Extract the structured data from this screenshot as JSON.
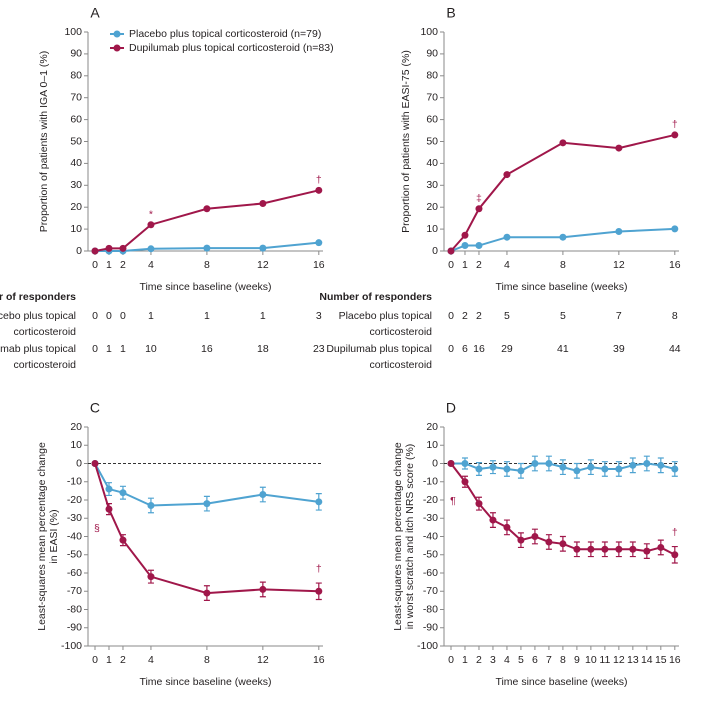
{
  "chart_data": [
    {
      "type": "line",
      "panel": "A",
      "ylabel": [
        "Proportion of patients with IGA 0–1 (%)"
      ],
      "xlabel": "Time since baseline (weeks)",
      "x": [
        0,
        1,
        2,
        4,
        8,
        12,
        16
      ],
      "xlim": [
        -0.5,
        16.3
      ],
      "xticks": [
        0,
        1,
        2,
        4,
        8,
        12,
        16
      ],
      "ylim": [
        0,
        100
      ],
      "yticks": [
        0,
        10,
        20,
        30,
        40,
        50,
        60,
        70,
        80,
        90,
        100
      ],
      "legend": "upper left",
      "series": [
        {
          "name": "Placebo plus topical corticosteroid (n=79)",
          "color": "#4fa3d1",
          "values": [
            0,
            0,
            0,
            1,
            1.3,
            1.3,
            3.8
          ]
        },
        {
          "name": "Dupilumab plus topical corticosteroid (n=83)",
          "color": "#a0174a",
          "values": [
            0,
            1.2,
            1.2,
            12,
            19.3,
            21.7,
            27.7
          ]
        }
      ],
      "annotations": [
        {
          "text": "*",
          "x": 4
        },
        {
          "text": "†",
          "x": 16
        }
      ],
      "responders": {
        "title": "Number of responders",
        "rows": [
          {
            "label_lines": [
              "Placebo plus topical",
              "corticosteroid"
            ],
            "values": [
              0,
              0,
              0,
              1,
              1,
              1,
              3
            ]
          },
          {
            "label_lines": [
              "Dupilumab plus topical",
              "corticosteroid"
            ],
            "values": [
              0,
              1,
              1,
              10,
              16,
              18,
              23
            ]
          }
        ]
      }
    },
    {
      "type": "line",
      "panel": "B",
      "ylabel": [
        "Proportion of patients with EASI-75 (%)"
      ],
      "xlabel": "Time since baseline (weeks)",
      "x": [
        0,
        1,
        2,
        4,
        8,
        12,
        16
      ],
      "xlim": [
        -0.5,
        16.3
      ],
      "xticks": [
        0,
        1,
        2,
        4,
        8,
        12,
        16
      ],
      "ylim": [
        0,
        100
      ],
      "yticks": [
        0,
        10,
        20,
        30,
        40,
        50,
        60,
        70,
        80,
        90,
        100
      ],
      "series": [
        {
          "color": "#4fa3d1",
          "values": [
            0,
            2.5,
            2.5,
            6.3,
            6.3,
            8.9,
            10.1
          ]
        },
        {
          "color": "#a0174a",
          "values": [
            0,
            7.2,
            19.3,
            34.9,
            49.4,
            47,
            53
          ]
        }
      ],
      "annotations": [
        {
          "text": "‡",
          "x": 2
        },
        {
          "text": "†",
          "x": 16
        }
      ],
      "responders": {
        "title": "Number of responders",
        "rows": [
          {
            "label_lines": [
              "Placebo plus topical",
              "corticosteroid"
            ],
            "values": [
              0,
              2,
              2,
              5,
              5,
              7,
              8
            ]
          },
          {
            "label_lines": [
              "Dupilumab plus topical",
              "corticosteroid"
            ],
            "values": [
              0,
              6,
              16,
              29,
              41,
              39,
              44
            ]
          }
        ]
      }
    },
    {
      "type": "line",
      "panel": "C",
      "ylabel": [
        "Least-squares mean percentage change",
        "in EASI (%)"
      ],
      "xlabel": "Time since baseline (weeks)",
      "x": [
        0,
        1,
        2,
        4,
        8,
        12,
        16
      ],
      "xlim": [
        -0.5,
        16.3
      ],
      "xticks": [
        0,
        1,
        2,
        4,
        8,
        12,
        16
      ],
      "ylim": [
        -100,
        20
      ],
      "yticks": [
        20,
        10,
        0,
        -10,
        -20,
        -30,
        -40,
        -50,
        -60,
        -70,
        -80,
        -90,
        -100
      ],
      "hline": 0,
      "series": [
        {
          "color": "#4fa3d1",
          "values": [
            0,
            -14,
            -16,
            -23,
            -22,
            -17,
            -21
          ],
          "errors": [
            0,
            3.5,
            3.5,
            4,
            4,
            4,
            4.5
          ]
        },
        {
          "color": "#a0174a",
          "values": [
            0,
            -25,
            -42,
            -62,
            -71,
            -69,
            -70
          ],
          "errors": [
            0,
            3,
            3,
            3.5,
            4,
            4,
            4.5
          ]
        }
      ],
      "annotations": [
        {
          "text": "§",
          "x": 1
        },
        {
          "text": "†",
          "x": 16
        }
      ]
    },
    {
      "type": "line",
      "panel": "D",
      "ylabel": [
        "Least-squares mean percentage change",
        "in worst scratch and itch NRS score (%)"
      ],
      "xlabel": "Time since baseline (weeks)",
      "x": [
        0,
        1,
        2,
        3,
        4,
        5,
        6,
        7,
        8,
        9,
        10,
        11,
        12,
        13,
        14,
        15,
        16
      ],
      "xlim": [
        -0.5,
        16.3
      ],
      "xticks": [
        0,
        1,
        2,
        3,
        4,
        5,
        6,
        7,
        8,
        9,
        10,
        11,
        12,
        13,
        14,
        15,
        16
      ],
      "ylim": [
        -100,
        20
      ],
      "yticks": [
        20,
        10,
        0,
        -10,
        -20,
        -30,
        -40,
        -50,
        -60,
        -70,
        -80,
        -90,
        -100
      ],
      "hline": 0,
      "series": [
        {
          "color": "#4fa3d1",
          "values": [
            0,
            0,
            -3,
            -2,
            -3,
            -4,
            0,
            0,
            -2,
            -4,
            -2,
            -3,
            -3,
            -1,
            0,
            -1,
            -3
          ],
          "errors": [
            0,
            3,
            3.5,
            3.5,
            4,
            4,
            4,
            4,
            4,
            4,
            4,
            4,
            4,
            4,
            4,
            4,
            4
          ]
        },
        {
          "color": "#a0174a",
          "values": [
            0,
            -10,
            -22,
            -31,
            -35,
            -42,
            -40,
            -43,
            -44,
            -47,
            -47,
            -47,
            -47,
            -47,
            -48,
            -46,
            -50
          ],
          "errors": [
            0,
            3,
            3.5,
            4,
            4,
            4,
            4,
            4,
            4,
            4,
            4,
            4,
            4,
            4,
            4,
            4,
            4.5
          ]
        }
      ],
      "annotations": [
        {
          "text": "¶",
          "x": 1
        },
        {
          "text": "†",
          "x": 16
        }
      ]
    }
  ]
}
